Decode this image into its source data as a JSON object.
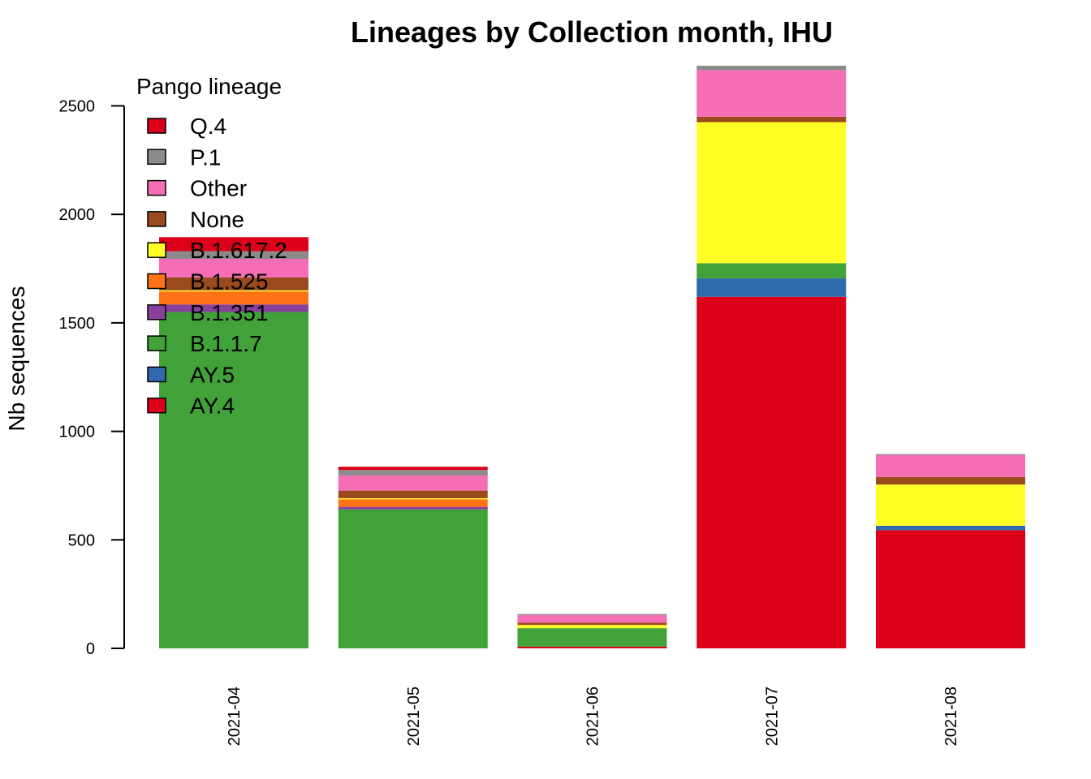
{
  "chart_data": {
    "type": "bar",
    "stacked": true,
    "title": "Lineages by Collection month, IHU",
    "xlabel": "",
    "ylabel": "Nb sequences",
    "ylim": [
      0,
      2700
    ],
    "yticks": [
      0,
      500,
      1000,
      1500,
      2000,
      2500
    ],
    "categories": [
      "2021-04",
      "2021-05",
      "2021-06",
      "2021-07",
      "2021-08"
    ],
    "legend": {
      "title": "Pango lineage",
      "position": "top-left"
    },
    "series": [
      {
        "name": "AY.4",
        "color": "#DC0019",
        "values": [
          0,
          0,
          8,
          1620,
          545
        ]
      },
      {
        "name": "AY.5",
        "color": "#2F6BAC",
        "values": [
          0,
          0,
          0,
          85,
          20
        ]
      },
      {
        "name": "B.1.1.7",
        "color": "#41A23A",
        "values": [
          1550,
          640,
          85,
          70,
          0
        ]
      },
      {
        "name": "B.1.351",
        "color": "#89409B",
        "values": [
          35,
          12,
          0,
          0,
          0
        ]
      },
      {
        "name": "B.1.525",
        "color": "#FF7216",
        "values": [
          60,
          35,
          0,
          0,
          0
        ]
      },
      {
        "name": "B.1.617.2",
        "color": "#FFFF26",
        "values": [
          5,
          5,
          15,
          650,
          190
        ]
      },
      {
        "name": "None",
        "color": "#9B4A1E",
        "values": [
          60,
          35,
          10,
          25,
          35
        ]
      },
      {
        "name": "Other",
        "color": "#F46DB5",
        "values": [
          85,
          70,
          35,
          215,
          100
        ]
      },
      {
        "name": "P.1",
        "color": "#8B8B8B",
        "values": [
          35,
          25,
          5,
          20,
          5
        ]
      },
      {
        "name": "Q.4",
        "color": "#DC0019",
        "values": [
          65,
          15,
          0,
          0,
          0
        ]
      }
    ]
  }
}
